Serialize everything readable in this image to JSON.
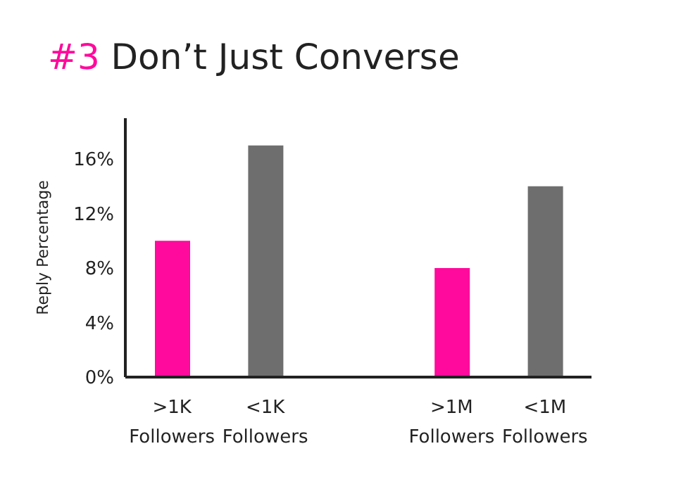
{
  "chart_data": {
    "type": "bar",
    "title": "#3 Don’t Just Converse",
    "ylabel": "Reply Percentage",
    "categories": [
      ">1K Followers",
      "<1K Followers",
      null,
      ">1M Followers",
      "<1M Followers"
    ],
    "values": [
      10,
      17,
      null,
      8,
      14
    ],
    "colors": [
      "#ff0a9c",
      "#6e6e6e",
      "#ffffff",
      "#ff0a9c",
      "#6e6e6e"
    ],
    "ylim": [
      0,
      19
    ],
    "yticks": [
      {
        "value": 0,
        "label": "0%"
      },
      {
        "value": 4,
        "label": "4%"
      },
      {
        "value": 8,
        "label": "8%"
      },
      {
        "value": 12,
        "label": "12%"
      },
      {
        "value": 16,
        "label": "16%"
      }
    ],
    "grid": false,
    "legend": false
  }
}
